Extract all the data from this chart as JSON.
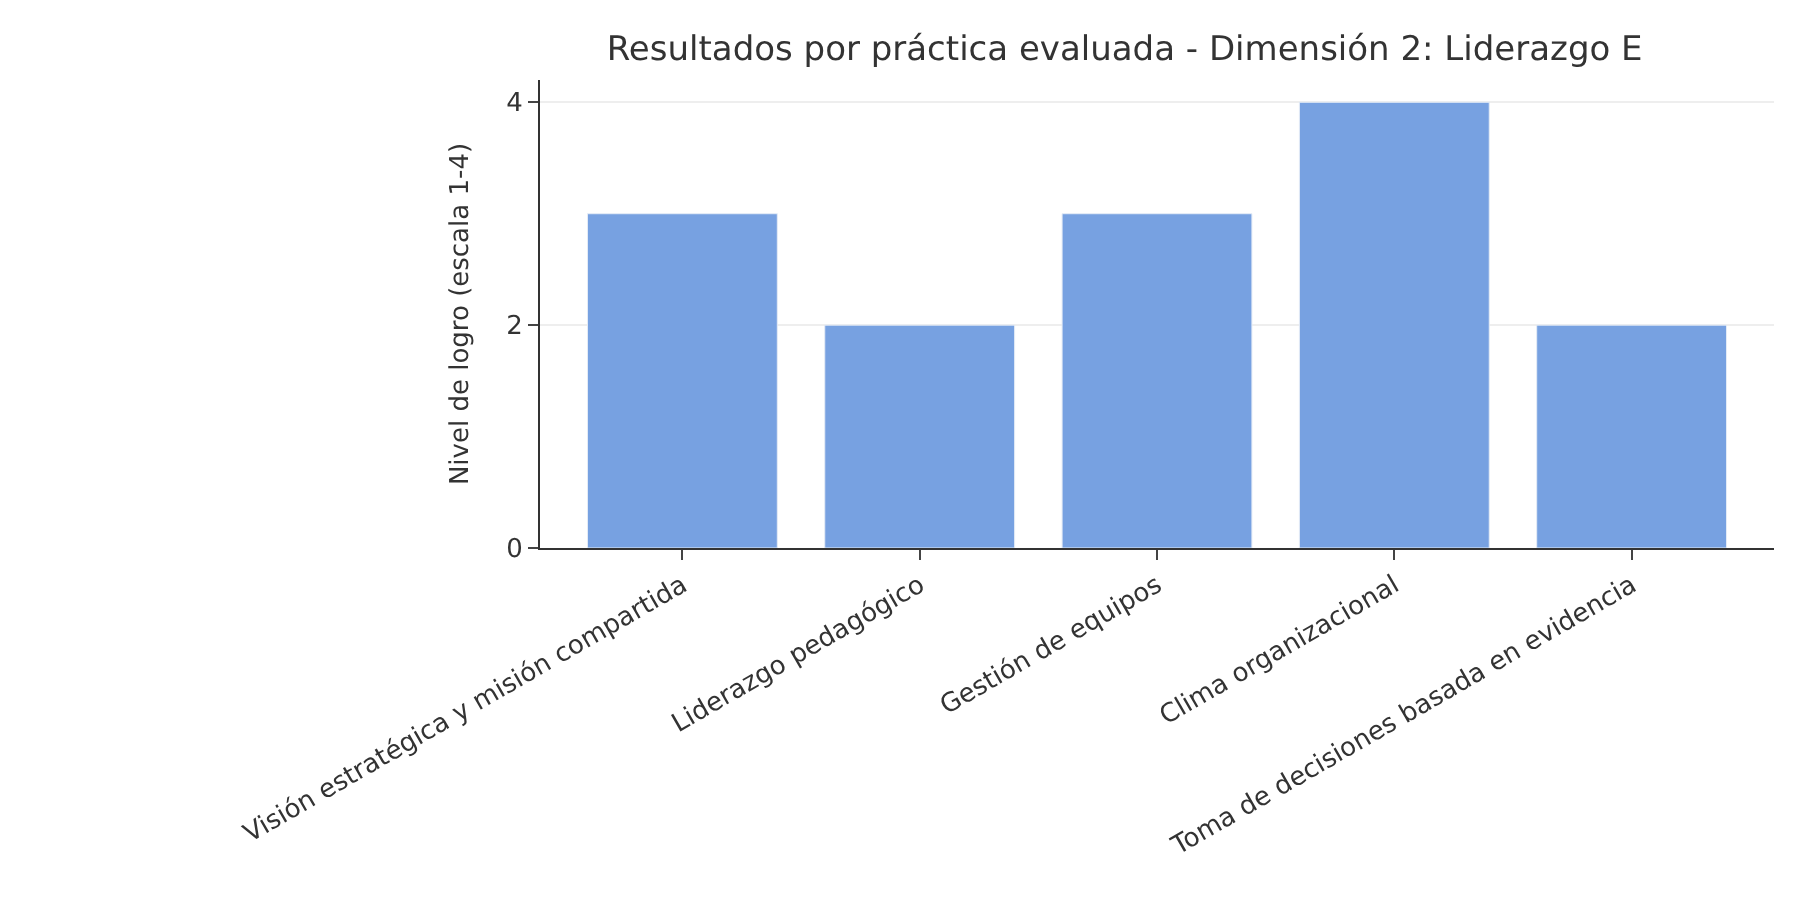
{
  "chart_data": {
    "type": "bar",
    "title": "Resultados por práctica evaluada - Dimensión 2: Liderazgo E",
    "ylabel": "Nivel de logro (escala 1-4)",
    "categories": [
      "Visión estratégica y misión compartida",
      "Liderazgo pedagógico",
      "Gestión de equipos",
      "Clima organizacional",
      "Toma de decisiones basada en evidencia"
    ],
    "values": [
      3,
      2,
      3,
      4,
      2
    ],
    "color": "#77a1e1",
    "ylim": [
      0,
      4.2
    ],
    "yticks": [
      0,
      2,
      4
    ],
    "grid": "y"
  }
}
